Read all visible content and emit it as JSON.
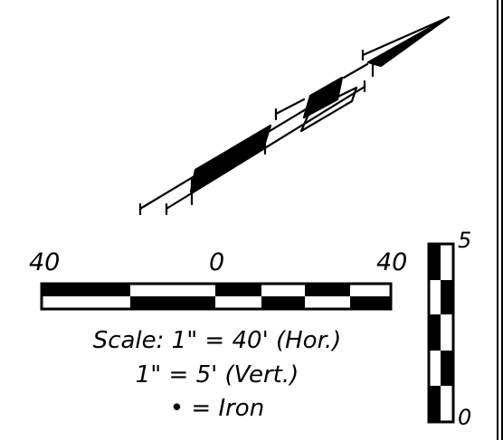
{
  "colors": {
    "ink": "#000000",
    "paper": "#ffffff"
  },
  "horizontal_scale": {
    "left_label": "40",
    "center_label": "0",
    "right_label": "40"
  },
  "vertical_scale": {
    "top_label": "5",
    "bottom_label": "0"
  },
  "legend": {
    "line1": "Scale:  1\" = 40' (Hor.)",
    "line2": "1\" = 5' (Vert.)",
    "line3": "• = Iron"
  }
}
